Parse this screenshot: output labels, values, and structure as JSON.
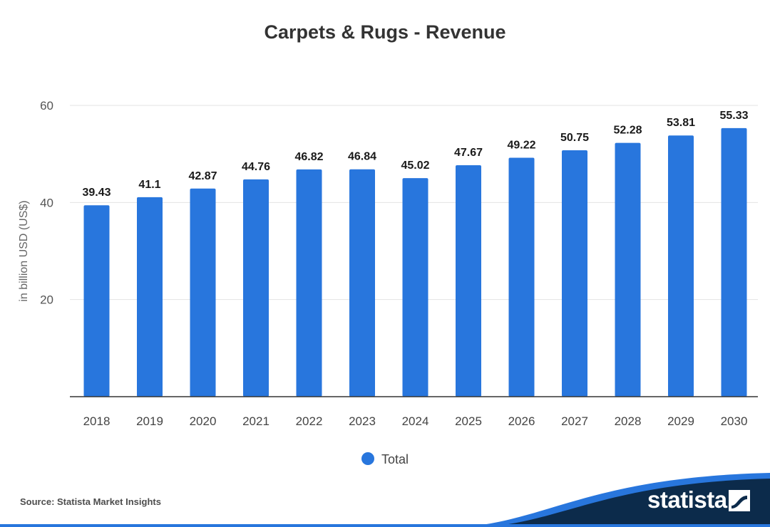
{
  "chart_data": {
    "type": "bar",
    "title": "Carpets & Rugs - Revenue",
    "ylabel": "in billion USD (US$)",
    "xlabel": "",
    "categories": [
      "2018",
      "2019",
      "2020",
      "2021",
      "2022",
      "2023",
      "2024",
      "2025",
      "2026",
      "2027",
      "2028",
      "2029",
      "2030"
    ],
    "series": [
      {
        "name": "Total",
        "values": [
          39.43,
          41.1,
          42.87,
          44.76,
          46.82,
          46.84,
          45.02,
          47.67,
          49.22,
          50.75,
          52.28,
          53.81,
          55.33
        ]
      }
    ],
    "value_labels": [
      "39.43",
      "41.1",
      "42.87",
      "44.76",
      "46.82",
      "46.84",
      "45.02",
      "47.67",
      "49.22",
      "50.75",
      "52.28",
      "53.81",
      "55.33"
    ],
    "ylim": [
      0,
      60
    ],
    "yticks": [
      20,
      40,
      60
    ],
    "ytick_labels": [
      "20",
      "40",
      "60"
    ],
    "grid": true,
    "legend_position": "bottom-center",
    "bar_color": "#2876dd"
  },
  "footer": {
    "source": "Source: Statista Market Insights",
    "brand": "statista",
    "brand_bg": "#0c2b4b",
    "brand_accent": "#2876dd"
  }
}
